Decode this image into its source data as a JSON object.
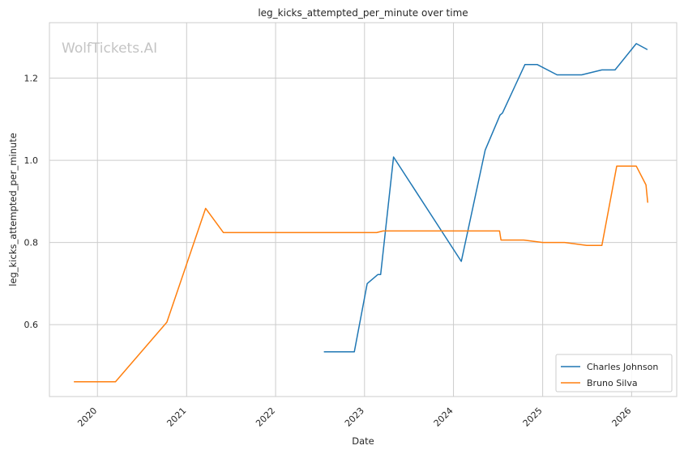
{
  "watermark": "WolfTickets.AI",
  "chart_data": {
    "type": "line",
    "title": "leg_kicks_attempted_per_minute over time",
    "xlabel": "Date",
    "ylabel": "leg_kicks_attempted_per_minute",
    "x_ticks": [
      "2020",
      "2021",
      "2022",
      "2023",
      "2024",
      "2025",
      "2026"
    ],
    "y_ticks": [
      "0.6",
      "0.8",
      "1.0",
      "1.2"
    ],
    "xlim": [
      "2019-06-18",
      "2026-07-05"
    ],
    "ylim": [
      0.425,
      1.335
    ],
    "grid": true,
    "legend_position": "lower-right",
    "series": [
      {
        "name": "Charles Johnson",
        "color": "#1f77b4",
        "points": [
          [
            "2022-07-20",
            0.534
          ],
          [
            "2022-11-20",
            0.534
          ],
          [
            "2023-01-12",
            0.7
          ],
          [
            "2023-02-25",
            0.722
          ],
          [
            "2023-03-08",
            0.722
          ],
          [
            "2023-04-30",
            1.008
          ],
          [
            "2024-02-02",
            0.754
          ],
          [
            "2024-05-10",
            1.025
          ],
          [
            "2024-07-10",
            1.11
          ],
          [
            "2024-07-20",
            1.115
          ],
          [
            "2024-10-20",
            1.233
          ],
          [
            "2024-12-10",
            1.233
          ],
          [
            "2025-03-01",
            1.208
          ],
          [
            "2025-06-10",
            1.208
          ],
          [
            "2025-09-01",
            1.22
          ],
          [
            "2025-10-25",
            1.22
          ],
          [
            "2026-01-20",
            1.284
          ],
          [
            "2026-03-05",
            1.27
          ]
        ]
      },
      {
        "name": "Bruno Silva",
        "color": "#ff7f0e",
        "points": [
          [
            "2019-09-28",
            0.461
          ],
          [
            "2020-03-15",
            0.461
          ],
          [
            "2020-10-12",
            0.606
          ],
          [
            "2021-03-20",
            0.883
          ],
          [
            "2021-06-01",
            0.824
          ],
          [
            "2023-02-20",
            0.824
          ],
          [
            "2023-03-18",
            0.828
          ],
          [
            "2024-07-08",
            0.828
          ],
          [
            "2024-07-14",
            0.806
          ],
          [
            "2024-10-15",
            0.806
          ],
          [
            "2025-01-01",
            0.8
          ],
          [
            "2025-04-01",
            0.8
          ],
          [
            "2025-07-01",
            0.793
          ],
          [
            "2025-09-01",
            0.793
          ],
          [
            "2025-11-01",
            0.986
          ],
          [
            "2026-01-20",
            0.986
          ],
          [
            "2026-03-01",
            0.94
          ],
          [
            "2026-03-08",
            0.898
          ]
        ]
      }
    ]
  }
}
